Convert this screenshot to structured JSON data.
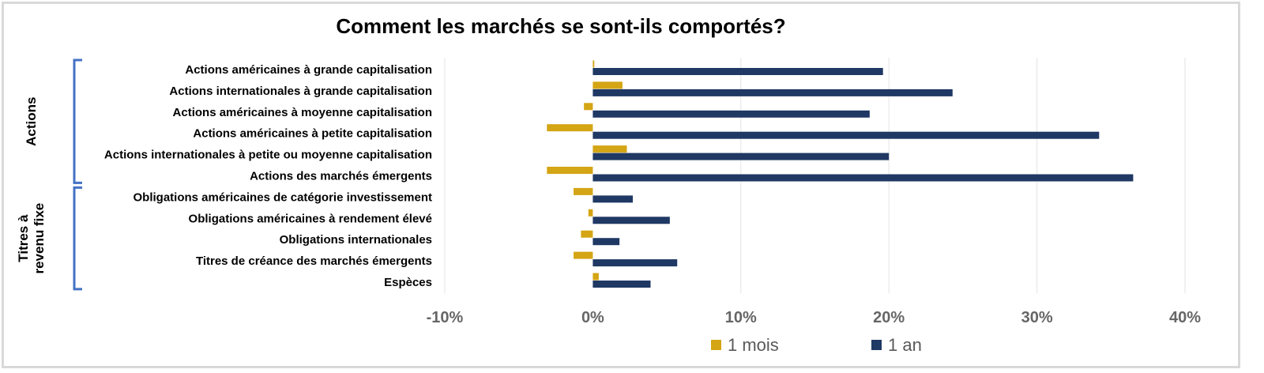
{
  "chart_data": {
    "type": "bar",
    "orientation": "horizontal",
    "title": "Comment les marchés se sont-ils comportés?",
    "xlabel": "",
    "ylabel": "",
    "categories": [
      "Actions américaines à grande capitalisation",
      "Actions internationales à grande capitalisation",
      "Actions américaines à moyenne capitalisation",
      "Actions américaines à petite capitalisation",
      "Actions internationales à petite ou moyenne capitalisation",
      "Actions des marchés émergents",
      "Obligations américaines de catégorie investissement",
      "Obligations américaines à rendement élevé",
      "Obligations internationales",
      "Titres de créance des marchés émergents",
      "Espèces"
    ],
    "groups": [
      {
        "label": "Actions",
        "first": 0,
        "last": 5
      },
      {
        "label_lines": [
          "Titres à",
          "revenu fixe"
        ],
        "first": 6,
        "last": 10
      }
    ],
    "series": [
      {
        "name": "1 mois",
        "color": "#d4a514",
        "values": [
          0.1,
          2.0,
          -0.6,
          -3.1,
          2.3,
          -3.1,
          -1.3,
          -0.3,
          -0.8,
          -1.3,
          0.4
        ]
      },
      {
        "name": "1 an",
        "color": "#1f3864",
        "values": [
          19.6,
          24.3,
          18.7,
          34.2,
          20.0,
          36.5,
          2.7,
          5.2,
          1.8,
          5.7,
          3.9
        ]
      }
    ],
    "xlim": [
      -10,
      40
    ],
    "ticks": [
      -10,
      0,
      10,
      20,
      30,
      40
    ],
    "tick_labels": [
      "-10%",
      "0%",
      "10%",
      "20%",
      "30%",
      "40%"
    ],
    "grid": true,
    "legend": "bottom"
  }
}
